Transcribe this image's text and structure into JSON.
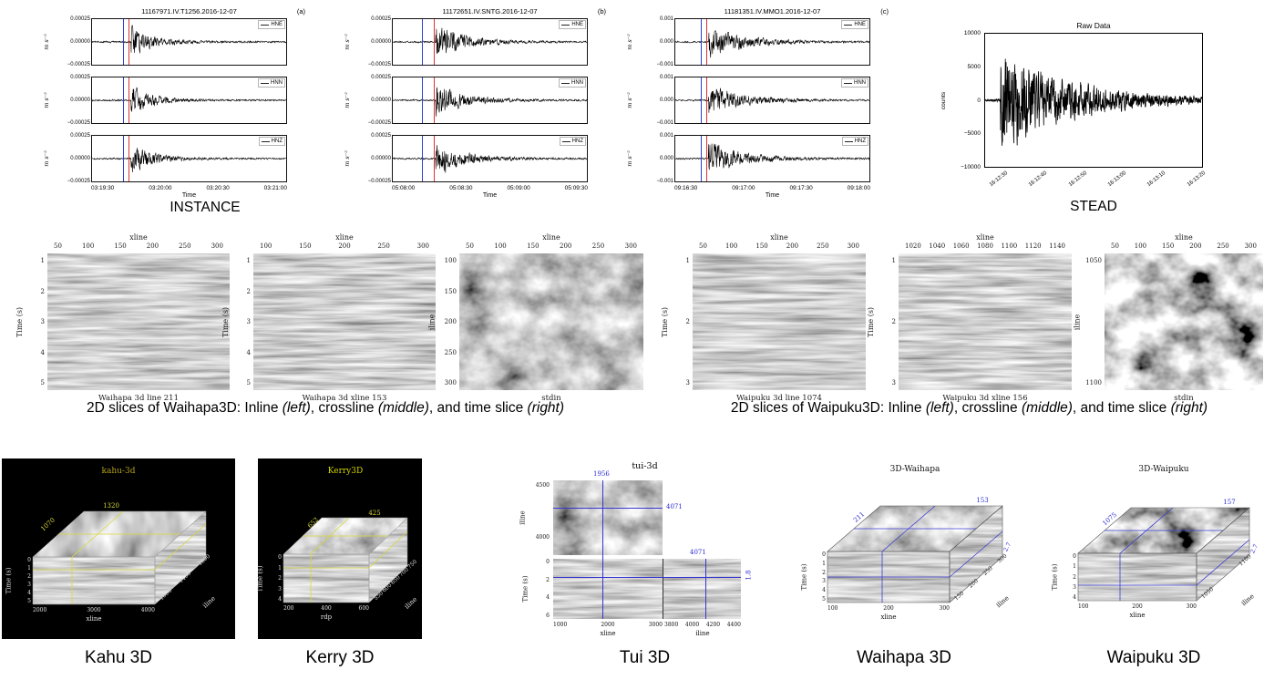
{
  "instance": {
    "caption": "INSTANCE",
    "panels": [
      {
        "title": "11167971.IV.T1256.2016-12-07",
        "tag": "(a)",
        "ylabel": "m s⁻²",
        "yticks": [
          "0.00025",
          "0.00000",
          "−0.00025"
        ],
        "xlabel": "Time",
        "xticks": [
          "03:19:30",
          "03:20:00",
          "03:20:30",
          "03:21:00"
        ],
        "channels": [
          "HNE",
          "HNN",
          "HNZ"
        ],
        "picks": {
          "blue": 16,
          "red": 19
        },
        "wave": {
          "onset": 0.2,
          "amp": 0.85,
          "decay": 9,
          "noise": 0.05
        }
      },
      {
        "title": "11172651.IV.SNTG.2016-12-07",
        "tag": "(b)",
        "ylabel": "m s⁻²",
        "yticks": [
          "0.00025",
          "0.00000",
          "−0.00025"
        ],
        "xlabel": "Time",
        "xticks": [
          "05:08:00",
          "05:08:30",
          "05:09:00",
          "05:09:30"
        ],
        "channels": [
          "HNE",
          "HNN",
          "HNZ"
        ],
        "picks": {
          "blue": 15,
          "red": 21
        },
        "wave": {
          "onset": 0.22,
          "amp": 1.0,
          "decay": 7,
          "noise": 0.05
        }
      },
      {
        "title": "11181351.IV.MMO1.2016-12-07",
        "tag": "(c)",
        "ylabel": "m s⁻²",
        "yticks": [
          "0.001",
          "0.000",
          "−0.001"
        ],
        "xlabel": "Time",
        "xticks": [
          "09:16:30",
          "09:17:00",
          "09:17:30",
          "09:18:00"
        ],
        "channels": [
          "HNE",
          "HNN",
          "HNZ"
        ],
        "picks": {
          "blue": 13,
          "red": 16
        },
        "wave": {
          "onset": 0.17,
          "amp": 0.95,
          "decay": 6,
          "noise": 0.05
        }
      }
    ]
  },
  "stead": {
    "title": "Raw Data",
    "ylabel": "counts",
    "yticks": [
      "10000",
      "5000",
      "0",
      "−5000",
      "−10000"
    ],
    "xticks": [
      "16:12:30",
      "16:12:40",
      "16:12:50",
      "16:13:00",
      "16:13:10",
      "16:13:20"
    ],
    "caption": "STEAD",
    "wave": {
      "onset": 0.07,
      "amp": 1.0,
      "decay": 3.2,
      "noise": 0.03
    }
  },
  "slices": {
    "waihapa": {
      "cap": [
        "2D slices of Waihapa3D: Inline ",
        "(left)",
        ", crossline ",
        "(middle)",
        ", and time slice ",
        "(right)"
      ],
      "panels": [
        {
          "top_label": "xline",
          "top_ticks": [
            "50",
            "100",
            "150",
            "200",
            "250",
            "300"
          ],
          "left_label": "Time (s)",
          "left_ticks": [
            "1",
            "2",
            "3",
            "4",
            "5"
          ],
          "caption": "Waihapa 3d line 211"
        },
        {
          "top_label": "xline",
          "top_ticks": [
            "100",
            "150",
            "200",
            "250",
            "300"
          ],
          "left_label": "Time (s)",
          "left_ticks": [
            "1",
            "2",
            "3",
            "4",
            "5"
          ],
          "caption": "Waihapa 3d xline 153"
        },
        {
          "top_label": "xline",
          "top_ticks": [
            "50",
            "100",
            "150",
            "200",
            "250",
            "300"
          ],
          "left_label": "iline",
          "left_ticks": [
            "100",
            "150",
            "200",
            "250",
            "300"
          ],
          "caption": "stdin"
        }
      ]
    },
    "waipuku": {
      "cap": [
        "2D slices of Waipuku3D: Inline ",
        "(left)",
        ", crossline ",
        "(middle)",
        ", and time slice ",
        "(right)"
      ],
      "panels": [
        {
          "top_label": "xline",
          "top_ticks": [
            "50",
            "100",
            "150",
            "200",
            "250",
            "300"
          ],
          "left_label": "Time (s)",
          "left_ticks": [
            "1",
            "2",
            "3"
          ],
          "caption": "Waipuku 3d line 1074"
        },
        {
          "top_label": "xline",
          "top_ticks": [
            "1020",
            "1040",
            "1060",
            "1080",
            "1100",
            "1120",
            "1140"
          ],
          "left_label": "Time (s)",
          "left_ticks": [
            "1",
            "2",
            "3"
          ],
          "caption": "Waipuku 3d xline 156"
        },
        {
          "top_label": "xline",
          "top_ticks": [
            "50",
            "100",
            "150",
            "200",
            "250",
            "300"
          ],
          "left_label": "iline",
          "left_ticks": [
            "1050",
            "1100"
          ],
          "caption": "stdin"
        }
      ]
    }
  },
  "cubes": {
    "kahu": {
      "title": "kahu-3d",
      "caption": "Kahu 3D",
      "ann_top": "1320",
      "ann_left": "1070",
      "time_label": "Time (s)",
      "time_ticks": [
        "0",
        "1",
        "2",
        "3",
        "4",
        "5"
      ],
      "x_label": "xline",
      "x_ticks": [
        "2000",
        "3000",
        "4000"
      ],
      "d_label": "iline",
      "d_ticks": [
        "1000",
        "1400",
        "1800"
      ]
    },
    "kerry": {
      "title": "Kerry3D",
      "caption": "Kerry 3D",
      "ann_top": "425",
      "ann_left": "652",
      "time_label": "Time (s)",
      "time_ticks": [
        "0",
        "1",
        "2",
        "3",
        "4"
      ],
      "x_label": "rdp",
      "x_ticks": [
        "200",
        "400",
        "600"
      ],
      "d_label": "iline",
      "d_ticks": [
        "550",
        "600",
        "650",
        "700",
        "750"
      ]
    },
    "tui": {
      "title": "tui-3d",
      "caption": "Tui 3D",
      "ann_xline": "1956",
      "ann_iline": "4071",
      "ann_iline2": "4071",
      "ann_time": "1.8",
      "tl_left_label": "iline",
      "tl_left_ticks": [
        "4500",
        "4000"
      ],
      "time_label": "Time (s)",
      "time_ticks": [
        "0",
        "2",
        "4",
        "6"
      ],
      "x_label": "xline",
      "x_ticks": [
        "1000",
        "2000",
        "3000"
      ],
      "i_label": "iline",
      "i_ticks": [
        "3800",
        "4000",
        "4200",
        "4400"
      ]
    },
    "waihapa": {
      "title": "3D-Waihapa",
      "caption": "Waihapa 3D",
      "ann_depth": "211",
      "ann_top": "153",
      "ann_time": "2.7",
      "time_label": "Time (s)",
      "time_ticks": [
        "0",
        "1",
        "2",
        "3",
        "4",
        "5"
      ],
      "x_label": "xline",
      "x_ticks": [
        "100",
        "200",
        "300"
      ],
      "d_label": "iline",
      "d_ticks": [
        "150",
        "200",
        "250",
        "300"
      ]
    },
    "waipuku": {
      "title": "3D-Waipuku",
      "caption": "Waipuku 3D",
      "ann_depth": "1075",
      "ann_top": "157",
      "ann_time": "2.7",
      "time_label": "Time (s)",
      "time_ticks": [
        "0",
        "1",
        "2",
        "3",
        "4"
      ],
      "x_label": "xline",
      "x_ticks": [
        "100",
        "200",
        "300"
      ],
      "d_label": "iline",
      "d_ticks": [
        "1050",
        "1100"
      ]
    }
  },
  "chart_data": [
    {
      "type": "line",
      "panel": "(a)",
      "title": "11167971.IV.T1256.2016-12-07",
      "series": [
        "HNE",
        "HNN",
        "HNZ"
      ],
      "ylabel": "m s⁻²",
      "yticks": [
        0.00025,
        0,
        -0.00025
      ],
      "xlabel": "Time",
      "xticks": [
        "03:19:30",
        "03:20:00",
        "03:20:30",
        "03:21:00"
      ],
      "vlines": [
        "blue",
        "red"
      ]
    },
    {
      "type": "line",
      "panel": "(b)",
      "title": "11172651.IV.SNTG.2016-12-07",
      "series": [
        "HNE",
        "HNN",
        "HNZ"
      ],
      "ylabel": "m s⁻²",
      "yticks": [
        0.00025,
        0,
        -0.00025
      ],
      "xlabel": "Time",
      "xticks": [
        "05:08:00",
        "05:08:30",
        "05:09:00",
        "05:09:30"
      ],
      "vlines": [
        "blue",
        "red"
      ]
    },
    {
      "type": "line",
      "panel": "(c)",
      "title": "11181351.IV.MMO1.2016-12-07",
      "series": [
        "HNE",
        "HNN",
        "HNZ"
      ],
      "ylabel": "m s⁻²",
      "yticks": [
        0.001,
        0,
        -0.001
      ],
      "xlabel": "Time",
      "xticks": [
        "09:16:30",
        "09:17:00",
        "09:17:30",
        "09:18:00"
      ],
      "vlines": [
        "blue",
        "red"
      ]
    },
    {
      "type": "line",
      "title": "Raw Data",
      "ylabel": "counts",
      "yticks": [
        10000,
        5000,
        0,
        -5000,
        -10000
      ],
      "xticks": [
        "16:12:30",
        "16:12:40",
        "16:12:50",
        "16:13:00",
        "16:13:10",
        "16:13:20"
      ]
    },
    {
      "type": "heatmap",
      "title": "Waihapa 3d line 211",
      "xlabel": "xline",
      "xticks": [
        50,
        100,
        150,
        200,
        250,
        300
      ],
      "ylabel": "Time (s)",
      "yticks": [
        1,
        2,
        3,
        4,
        5
      ]
    },
    {
      "type": "heatmap",
      "title": "Waihapa 3d xline 153",
      "xlabel": "xline",
      "xticks": [
        100,
        150,
        200,
        250,
        300
      ],
      "ylabel": "Time (s)",
      "yticks": [
        1,
        2,
        3,
        4,
        5
      ]
    },
    {
      "type": "heatmap",
      "title": "stdin",
      "xlabel": "xline",
      "xticks": [
        50,
        100,
        150,
        200,
        250,
        300
      ],
      "ylabel": "iline",
      "yticks": [
        100,
        150,
        200,
        250,
        300
      ]
    },
    {
      "type": "heatmap",
      "title": "Waipuku 3d line 1074",
      "xlabel": "xline",
      "xticks": [
        50,
        100,
        150,
        200,
        250,
        300
      ],
      "ylabel": "Time (s)",
      "yticks": [
        1,
        2,
        3
      ]
    },
    {
      "type": "heatmap",
      "title": "Waipuku 3d xline 156",
      "xlabel": "xline",
      "xticks": [
        1020,
        1040,
        1060,
        1080,
        1100,
        1120,
        1140
      ],
      "ylabel": "Time (s)",
      "yticks": [
        1,
        2,
        3
      ]
    },
    {
      "type": "heatmap",
      "title": "stdin",
      "xlabel": "xline",
      "xticks": [
        50,
        100,
        150,
        200,
        250,
        300
      ],
      "ylabel": "iline",
      "yticks": [
        1050,
        1100
      ]
    },
    {
      "type": "heatmap",
      "title": "kahu-3d",
      "axes": {
        "time": [
          0,
          1,
          2,
          3,
          4,
          5
        ],
        "xline": [
          2000,
          3000,
          4000
        ],
        "iline": [
          1000,
          1400,
          1800
        ]
      },
      "annotations": [
        "1320",
        "1070"
      ]
    },
    {
      "type": "heatmap",
      "title": "Kerry3D",
      "axes": {
        "time": [
          0,
          1,
          2,
          3,
          4
        ],
        "rdp": [
          200,
          400,
          600
        ],
        "iline": [
          550,
          600,
          650,
          700,
          750
        ]
      },
      "annotations": [
        "425",
        "652"
      ]
    },
    {
      "type": "heatmap",
      "title": "tui-3d",
      "axes": {
        "time": [
          0,
          2,
          4,
          6
        ],
        "xline": [
          1000,
          2000,
          3000
        ],
        "iline_bottom": [
          3800,
          4000,
          4200,
          4400
        ],
        "iline_left": [
          4500,
          4000
        ]
      },
      "annotations": [
        "1956",
        "4071",
        "4071",
        "1.8"
      ]
    },
    {
      "type": "heatmap",
      "title": "3D-Waihapa",
      "axes": {
        "time": [
          0,
          1,
          2,
          3,
          4,
          5
        ],
        "xline": [
          100,
          200,
          300
        ],
        "iline": [
          150,
          200,
          250,
          300
        ]
      },
      "annotations": [
        "211",
        "153",
        "2.7"
      ]
    },
    {
      "type": "heatmap",
      "title": "3D-Waipuku",
      "axes": {
        "time": [
          0,
          1,
          2,
          3,
          4
        ],
        "xline": [
          100,
          200,
          300
        ],
        "iline": [
          1050,
          1100
        ]
      },
      "annotations": [
        "1075",
        "157",
        "2.7"
      ]
    }
  ]
}
